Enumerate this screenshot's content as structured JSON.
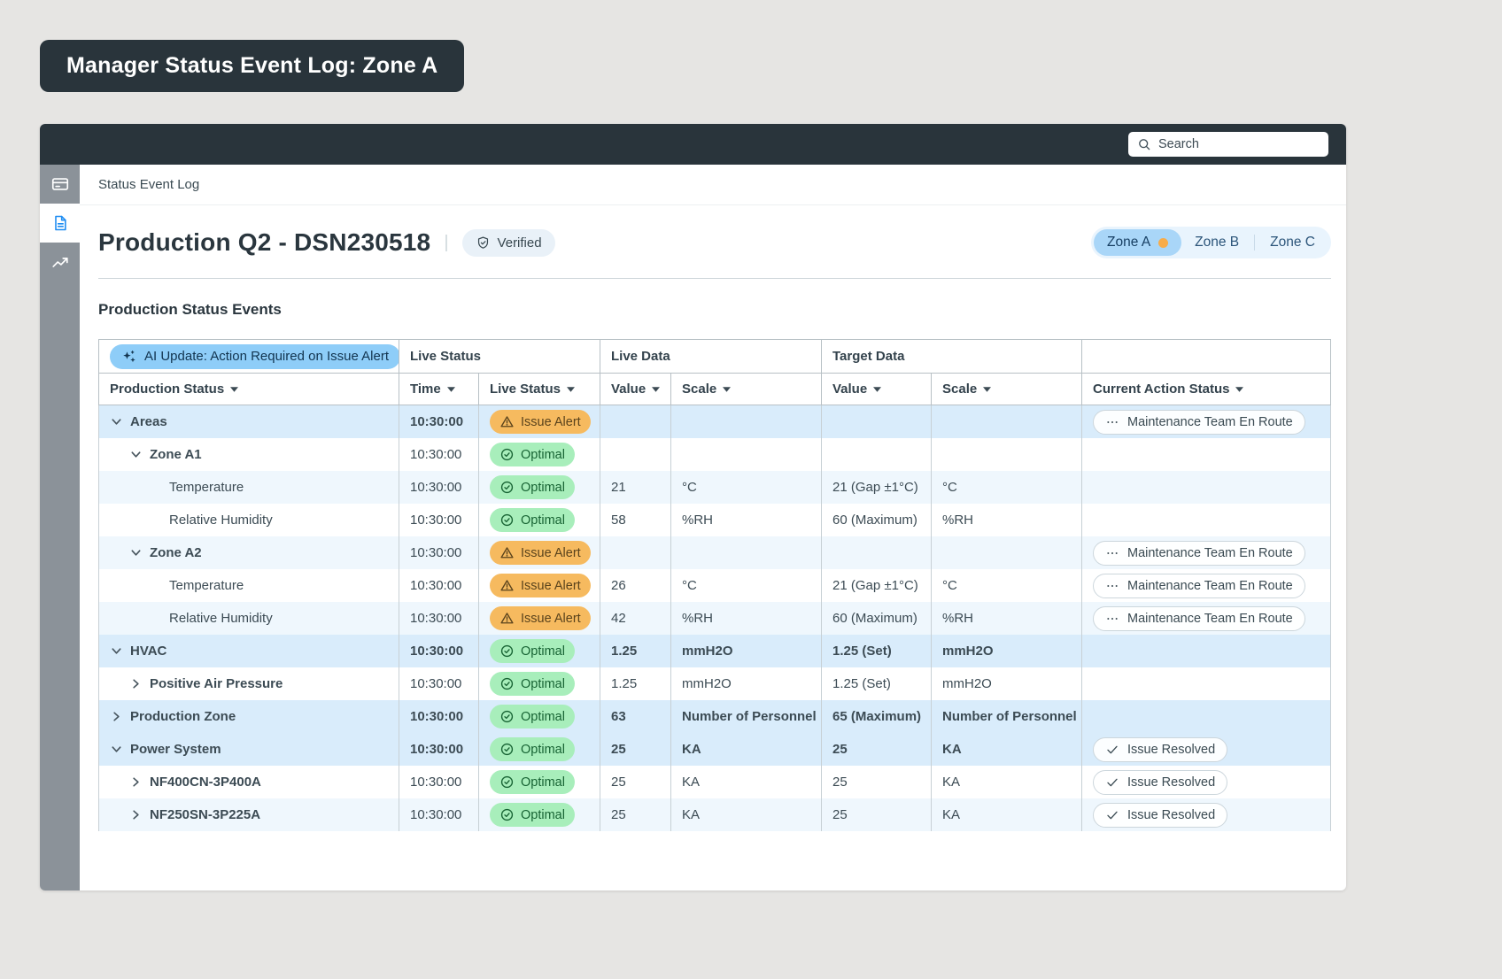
{
  "page_badge": {
    "title": "Manager Status Event Log: Zone A"
  },
  "topbar": {
    "search_placeholder": "Search",
    "search_icon": "search-icon"
  },
  "sidebar": {
    "items": [
      {
        "icon": "card-panel",
        "active": false
      },
      {
        "icon": "document",
        "active": true
      },
      {
        "icon": "chart-trend",
        "active": false
      }
    ]
  },
  "breadcrumb": "Status Event Log",
  "header": {
    "title": "Production Q2 - DSN230518",
    "divider": "|",
    "verified_label": "Verified",
    "verified_icon": "shield-check",
    "zones": [
      {
        "label": "Zone A",
        "active": true,
        "dot": true
      },
      {
        "label": "Zone B",
        "active": false,
        "dot": false
      },
      {
        "label": "Zone C",
        "active": false,
        "dot": false
      }
    ]
  },
  "section": {
    "title": "Production Status Events"
  },
  "table": {
    "ai_banner": "AI Update: Action Required on Issue Alert",
    "ai_banner_icon": "sparkles",
    "group_headers": {
      "live_status": "Live Status",
      "live_data": "Live Data",
      "target_data": "Target Data"
    },
    "columns": [
      "Production Status",
      "Time",
      "Live Status",
      "Value",
      "Scale",
      "Value",
      "Scale",
      "Current Action Status"
    ],
    "rows": [
      {
        "name": "Areas",
        "level": 0,
        "chevron": "down",
        "shade": "g",
        "time": "10:30:00",
        "time_bold": true,
        "status": "Issue Alert",
        "status_type": "alert",
        "live_value": "",
        "live_scale": "",
        "target_value": "",
        "target_scale": "",
        "values_bold": false,
        "action": "Maintenance Team En Route",
        "action_icon": "ellipsis"
      },
      {
        "name": "Zone A1",
        "level": 1,
        "chevron": "down",
        "shade": "w",
        "time": "10:30:00",
        "time_bold": false,
        "status": "Optimal",
        "status_type": "optimal",
        "live_value": "",
        "live_scale": "",
        "target_value": "",
        "target_scale": "",
        "values_bold": false,
        "action": "",
        "action_icon": ""
      },
      {
        "name": "Temperature",
        "level": 2,
        "chevron": "none",
        "shade": "p",
        "time": "10:30:00",
        "time_bold": false,
        "status": "Optimal",
        "status_type": "optimal",
        "live_value": "21",
        "live_scale": "°C",
        "target_value": "21 (Gap ±1°C)",
        "target_scale": "°C",
        "values_bold": false,
        "action": "",
        "action_icon": ""
      },
      {
        "name": "Relative Humidity",
        "level": 2,
        "chevron": "none",
        "shade": "w",
        "time": "10:30:00",
        "time_bold": false,
        "status": "Optimal",
        "status_type": "optimal",
        "live_value": "58",
        "live_scale": "%RH",
        "target_value": "60 (Maximum)",
        "target_scale": "%RH",
        "values_bold": false,
        "action": "",
        "action_icon": ""
      },
      {
        "name": "Zone A2",
        "level": 1,
        "chevron": "down",
        "shade": "p",
        "time": "10:30:00",
        "time_bold": false,
        "status": "Issue Alert",
        "status_type": "alert",
        "live_value": "",
        "live_scale": "",
        "target_value": "",
        "target_scale": "",
        "values_bold": false,
        "action": "Maintenance Team En Route",
        "action_icon": "ellipsis"
      },
      {
        "name": "Temperature",
        "level": 2,
        "chevron": "none",
        "shade": "w",
        "time": "10:30:00",
        "time_bold": false,
        "status": "Issue Alert",
        "status_type": "alert",
        "live_value": "26",
        "live_scale": "°C",
        "target_value": "21 (Gap ±1°C)",
        "target_scale": "°C",
        "values_bold": false,
        "action": "Maintenance Team En Route",
        "action_icon": "ellipsis"
      },
      {
        "name": "Relative Humidity",
        "level": 2,
        "chevron": "none",
        "shade": "p",
        "time": "10:30:00",
        "time_bold": false,
        "status": "Issue Alert",
        "status_type": "alert",
        "live_value": "42",
        "live_scale": "%RH",
        "target_value": "60 (Maximum)",
        "target_scale": "%RH",
        "values_bold": false,
        "action": "Maintenance Team En Route",
        "action_icon": "ellipsis"
      },
      {
        "name": "HVAC",
        "level": 0,
        "chevron": "down",
        "shade": "g",
        "time": "10:30:00",
        "time_bold": true,
        "status": "Optimal",
        "status_type": "optimal",
        "live_value": "1.25",
        "live_scale": "mmH2O",
        "target_value": "1.25 (Set)",
        "target_scale": "mmH2O",
        "values_bold": true,
        "action": "",
        "action_icon": ""
      },
      {
        "name": "Positive Air Pressure",
        "level": 1,
        "chevron": "right",
        "shade": "w",
        "time": "10:30:00",
        "time_bold": false,
        "status": "Optimal",
        "status_type": "optimal",
        "live_value": "1.25",
        "live_scale": "mmH2O",
        "target_value": "1.25 (Set)",
        "target_scale": "mmH2O",
        "values_bold": false,
        "action": "",
        "action_icon": ""
      },
      {
        "name": "Production Zone",
        "level": 0,
        "chevron": "right",
        "shade": "g",
        "time": "10:30:00",
        "time_bold": true,
        "status": "Optimal",
        "status_type": "optimal",
        "live_value": "63",
        "live_scale": "Number of Personnel",
        "target_value": "65 (Maximum)",
        "target_scale": "Number of Personnel",
        "values_bold": true,
        "action": "",
        "action_icon": ""
      },
      {
        "name": "Power System",
        "level": 0,
        "chevron": "down",
        "shade": "g",
        "time": "10:30:00",
        "time_bold": true,
        "status": "Optimal",
        "status_type": "optimal",
        "live_value": "25",
        "live_scale": "KA",
        "target_value": "25",
        "target_scale": "KA",
        "values_bold": true,
        "action": "Issue Resolved",
        "action_icon": "check"
      },
      {
        "name": "NF400CN-3P400A",
        "level": 1,
        "chevron": "right",
        "shade": "w",
        "time": "10:30:00",
        "time_bold": false,
        "status": "Optimal",
        "status_type": "optimal",
        "live_value": "25",
        "live_scale": "KA",
        "target_value": "25",
        "target_scale": "KA",
        "values_bold": false,
        "action": "Issue Resolved",
        "action_icon": "check"
      },
      {
        "name": "NF250SN-3P225A",
        "level": 1,
        "chevron": "right",
        "shade": "p",
        "time": "10:30:00",
        "time_bold": false,
        "status": "Optimal",
        "status_type": "optimal",
        "live_value": "25",
        "live_scale": "KA",
        "target_value": "25",
        "target_scale": "KA",
        "values_bold": false,
        "action": "Issue Resolved",
        "action_icon": "check"
      }
    ]
  },
  "colors": {
    "page_background": "#e6e5e3",
    "dark_bar": "#29343b",
    "sidebar_gray": "#8b9299",
    "accent_blue": "#1f8df2",
    "ai_pill_blue": "#8ecdf8",
    "zone_active_blue": "#a9d6f8",
    "zone_dot_orange": "#f7ac4a",
    "alert_orange": "#f6ba5f",
    "optimal_green": "#a8eebb",
    "group_row_blue": "#d9ecfb",
    "alt_row_blue": "#eff7fd"
  }
}
